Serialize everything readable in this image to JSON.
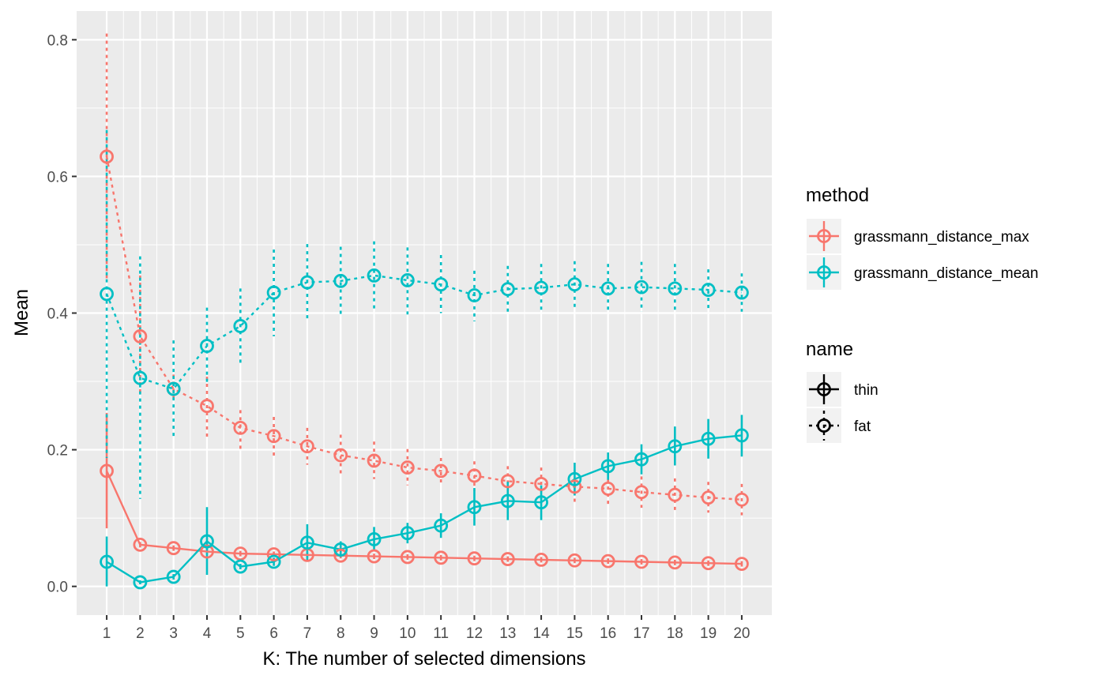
{
  "chart_data": {
    "type": "line",
    "xlabel": "K: The number of selected dimensions",
    "ylabel": "Mean",
    "x": [
      1,
      2,
      3,
      4,
      5,
      6,
      7,
      8,
      9,
      10,
      11,
      12,
      13,
      14,
      15,
      16,
      17,
      18,
      19,
      20
    ],
    "x_ticks": [
      "1",
      "2",
      "3",
      "4",
      "5",
      "6",
      "7",
      "8",
      "9",
      "10",
      "11",
      "12",
      "13",
      "14",
      "15",
      "16",
      "17",
      "18",
      "19",
      "20"
    ],
    "xlim": [
      0.1,
      20.9
    ],
    "ylim": [
      -0.042,
      0.842
    ],
    "y_ticks": [
      0.0,
      0.2,
      0.4,
      0.6,
      0.8
    ],
    "y_tick_labels": [
      "0.0",
      "0.2",
      "0.4",
      "0.6",
      "0.8"
    ],
    "grid": true,
    "legend_position": "right",
    "legend": {
      "method_title": "method",
      "method_entries": [
        {
          "label": "grassmann_distance_max",
          "color": "#F8766D"
        },
        {
          "label": "grassmann_distance_mean",
          "color": "#00BFC4"
        }
      ],
      "name_title": "name",
      "name_entries": [
        {
          "label": "thin",
          "linetype": "solid"
        },
        {
          "label": "fat",
          "linetype": "dotted"
        }
      ]
    },
    "series": [
      {
        "method": "grassmann_distance_max",
        "name": "thin",
        "color": "#F8766D",
        "linetype": "solid",
        "values": [
          0.169,
          0.061,
          0.056,
          0.051,
          0.048,
          0.047,
          0.046,
          0.045,
          0.044,
          0.043,
          0.042,
          0.041,
          0.04,
          0.039,
          0.038,
          0.037,
          0.036,
          0.035,
          0.034,
          0.033
        ],
        "lower": [
          0.085,
          0.057,
          0.052,
          0.047,
          0.044,
          0.043,
          0.042,
          0.041,
          0.04,
          0.039,
          0.038,
          0.037,
          0.036,
          0.035,
          0.034,
          0.033,
          0.032,
          0.031,
          0.03,
          0.029
        ],
        "upper": [
          0.254,
          0.065,
          0.06,
          0.055,
          0.052,
          0.051,
          0.05,
          0.049,
          0.048,
          0.047,
          0.046,
          0.045,
          0.044,
          0.043,
          0.042,
          0.041,
          0.04,
          0.039,
          0.038,
          0.037
        ]
      },
      {
        "method": "grassmann_distance_max",
        "name": "fat",
        "color": "#F8766D",
        "linetype": "dotted",
        "values": [
          0.629,
          0.366,
          0.289,
          0.264,
          0.232,
          0.22,
          0.205,
          0.192,
          0.184,
          0.174,
          0.169,
          0.162,
          0.154,
          0.15,
          0.146,
          0.143,
          0.138,
          0.134,
          0.13,
          0.127
        ],
        "lower": [
          0.45,
          0.28,
          0.27,
          0.218,
          0.197,
          0.19,
          0.178,
          0.162,
          0.157,
          0.148,
          0.151,
          0.14,
          0.133,
          0.125,
          0.122,
          0.12,
          0.115,
          0.11,
          0.108,
          0.104
        ],
        "upper": [
          0.809,
          0.455,
          0.31,
          0.307,
          0.258,
          0.248,
          0.232,
          0.222,
          0.212,
          0.201,
          0.188,
          0.183,
          0.176,
          0.174,
          0.17,
          0.167,
          0.161,
          0.158,
          0.153,
          0.15
        ]
      },
      {
        "method": "grassmann_distance_mean",
        "name": "thin",
        "color": "#00BFC4",
        "linetype": "solid",
        "values": [
          0.036,
          0.006,
          0.014,
          0.066,
          0.029,
          0.036,
          0.064,
          0.054,
          0.069,
          0.078,
          0.089,
          0.116,
          0.125,
          0.123,
          0.157,
          0.176,
          0.186,
          0.205,
          0.216,
          0.221
        ],
        "lower": [
          0.0,
          0.003,
          0.01,
          0.017,
          0.025,
          0.03,
          0.038,
          0.043,
          0.052,
          0.063,
          0.071,
          0.089,
          0.097,
          0.097,
          0.133,
          0.156,
          0.164,
          0.177,
          0.187,
          0.19
        ],
        "upper": [
          0.073,
          0.009,
          0.018,
          0.116,
          0.033,
          0.042,
          0.091,
          0.066,
          0.087,
          0.093,
          0.107,
          0.144,
          0.153,
          0.148,
          0.181,
          0.196,
          0.208,
          0.234,
          0.245,
          0.251
        ]
      },
      {
        "method": "grassmann_distance_mean",
        "name": "fat",
        "color": "#00BFC4",
        "linetype": "dotted",
        "values": [
          0.428,
          0.305,
          0.289,
          0.352,
          0.381,
          0.43,
          0.445,
          0.447,
          0.455,
          0.448,
          0.442,
          0.426,
          0.435,
          0.437,
          0.442,
          0.436,
          0.438,
          0.436,
          0.434,
          0.43
        ],
        "lower": [
          0.188,
          0.128,
          0.218,
          0.296,
          0.326,
          0.366,
          0.389,
          0.398,
          0.406,
          0.398,
          0.4,
          0.388,
          0.4,
          0.4,
          0.408,
          0.4,
          0.402,
          0.4,
          0.404,
          0.402
        ],
        "upper": [
          0.668,
          0.483,
          0.36,
          0.408,
          0.436,
          0.493,
          0.501,
          0.497,
          0.505,
          0.496,
          0.485,
          0.462,
          0.469,
          0.472,
          0.476,
          0.472,
          0.475,
          0.472,
          0.464,
          0.458
        ]
      }
    ]
  }
}
